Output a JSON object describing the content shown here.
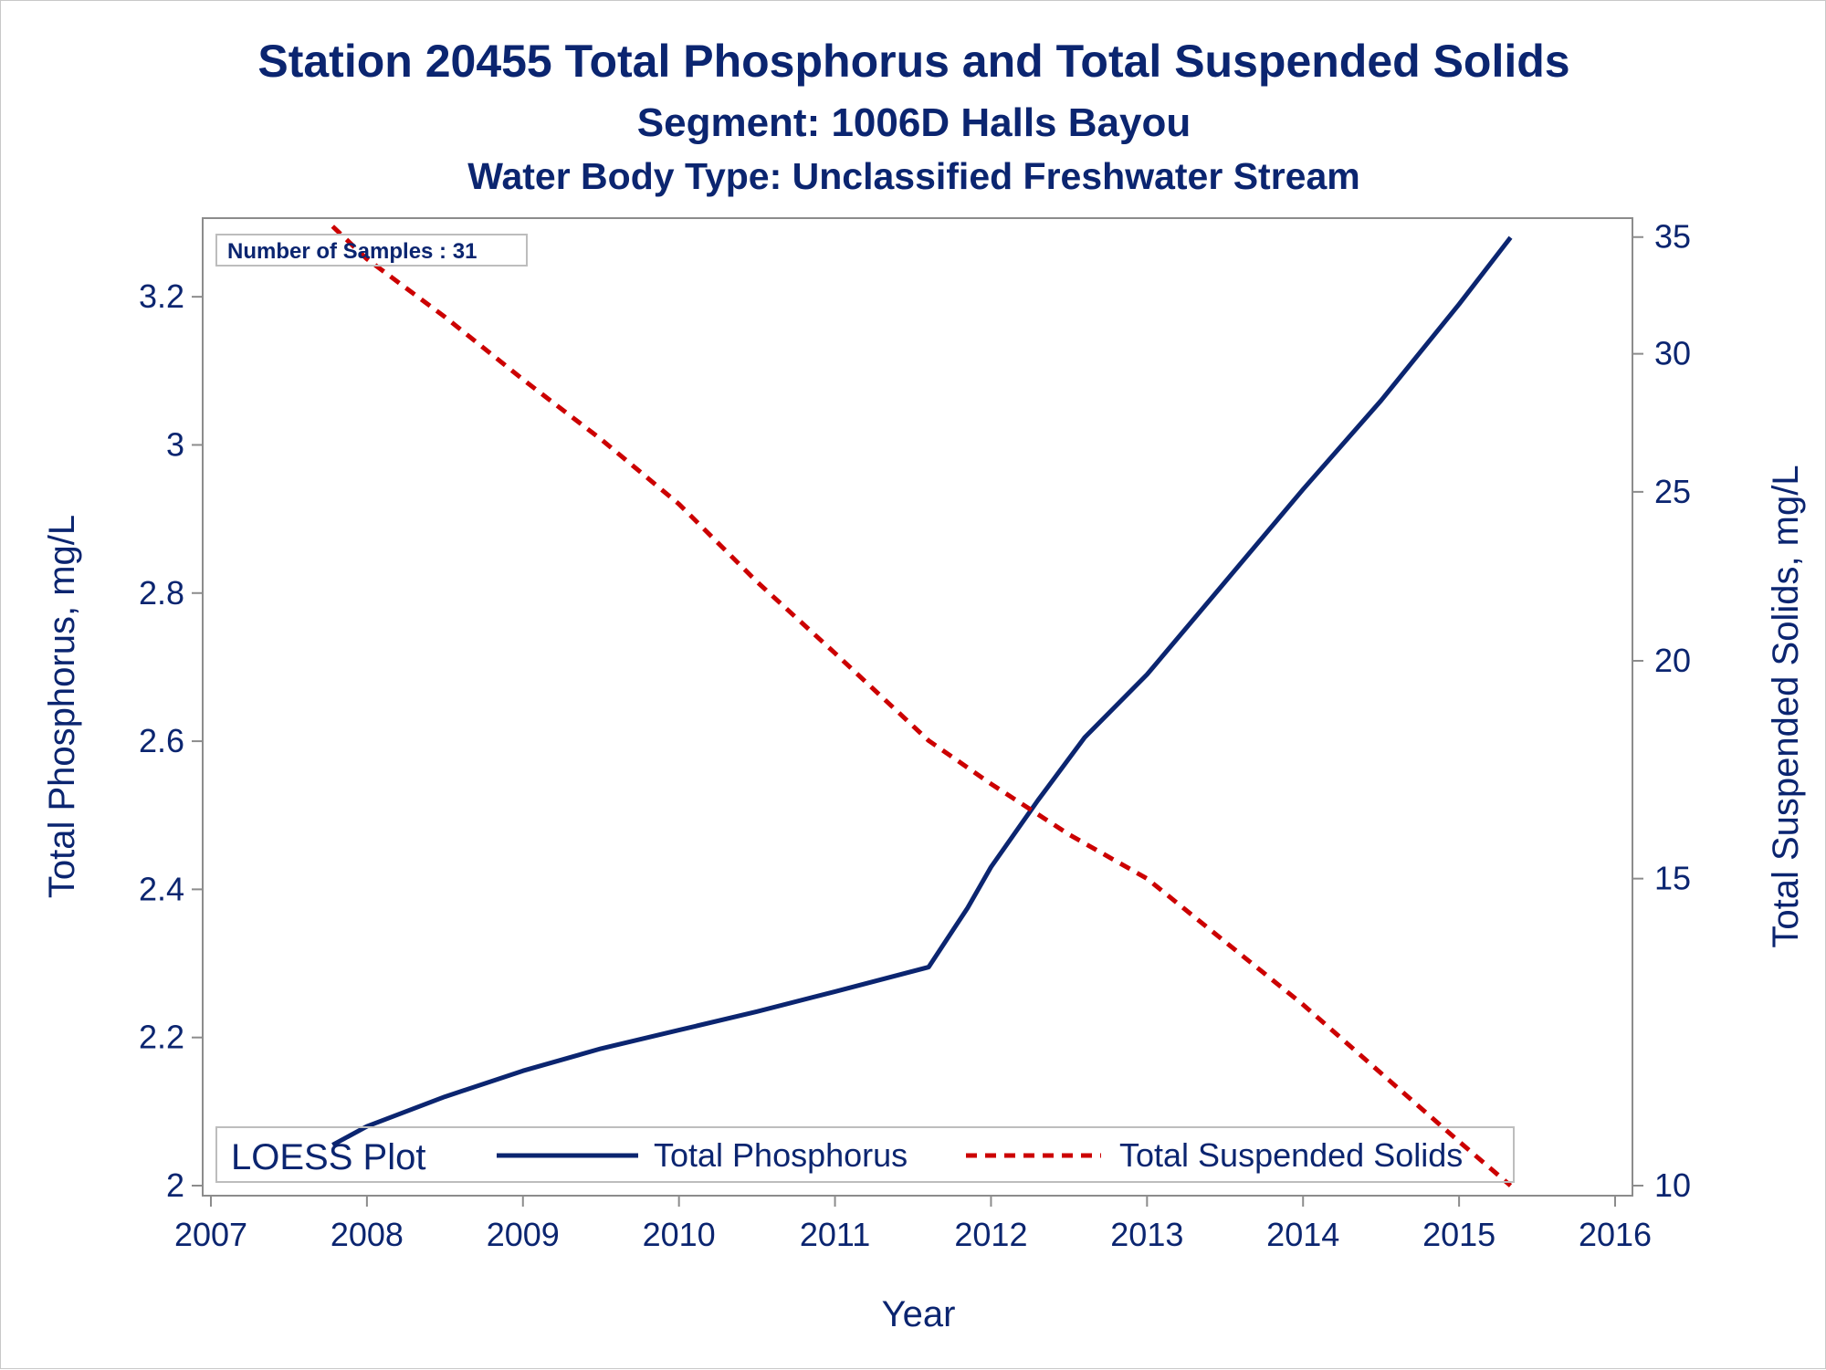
{
  "chart_data": {
    "type": "line",
    "title": "Station 20455  Total Phosphorus and Total Suspended Solids",
    "subtitle": "Segment: 1006D  Halls Bayou",
    "subtitle2": "Water Body Type: Unclassified Freshwater Stream",
    "xlabel": "Year",
    "ylabel": "Total Phosphorus, mg/L",
    "y2label": "Total Suspended Solids, mg/L",
    "xlim": [
      2007,
      2016
    ],
    "ylim": [
      2.0,
      3.3
    ],
    "y2lim": [
      10,
      35.8
    ],
    "y2_scale": "log",
    "x_ticks": [
      "2007",
      "2008",
      "2009",
      "2010",
      "2011",
      "2012",
      "2013",
      "2014",
      "2015",
      "2016"
    ],
    "y_ticks": [
      "2",
      "2.2",
      "2.4",
      "2.6",
      "2.8",
      "3",
      "3.2"
    ],
    "y2_ticks": [
      "10",
      "15",
      "20",
      "25",
      "30",
      "35"
    ],
    "annotation": "Number of Samples : 31",
    "legend": {
      "title": "LOESS Plot",
      "placement": "bottom-inside",
      "entries": [
        "Total Phosphorus",
        "Total Suspended Solids"
      ]
    },
    "grid": false,
    "series": [
      {
        "name": "Total Phosphorus",
        "axis": "left",
        "color": "#0b2570",
        "style": "solid",
        "x": [
          2007.78,
          2008.0,
          2008.5,
          2009.0,
          2009.5,
          2010.0,
          2010.5,
          2011.0,
          2011.6,
          2011.85,
          2012.0,
          2012.3,
          2012.6,
          2013.0,
          2013.5,
          2014.0,
          2014.5,
          2015.0,
          2015.33
        ],
        "y": [
          2.055,
          2.08,
          2.12,
          2.155,
          2.185,
          2.21,
          2.235,
          2.262,
          2.295,
          2.375,
          2.43,
          2.52,
          2.605,
          2.69,
          2.815,
          2.94,
          3.06,
          3.19,
          3.28
        ]
      },
      {
        "name": "Total Suspended Solids",
        "axis": "right",
        "color": "#cc0000",
        "style": "dashed",
        "x": [
          2007.78,
          2008.0,
          2008.5,
          2009.0,
          2009.5,
          2010.0,
          2010.5,
          2011.0,
          2011.6,
          2012.0,
          2012.5,
          2013.0,
          2013.5,
          2014.0,
          2014.5,
          2015.0,
          2015.33
        ],
        "y": [
          35.5,
          34.0,
          31.5,
          29.0,
          26.8,
          24.6,
          22.2,
          20.2,
          18.0,
          17.0,
          15.9,
          15.0,
          13.8,
          12.7,
          11.6,
          10.6,
          10.0
        ]
      }
    ]
  }
}
